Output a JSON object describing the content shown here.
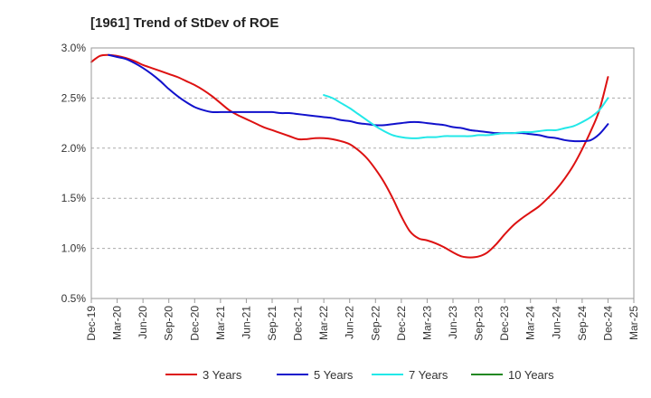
{
  "chart_data": {
    "type": "line",
    "title": "[1961]  Trend of StDev of ROE",
    "xlabel": "",
    "ylabel": "",
    "x_tick_labels": [
      "Dec-19",
      "Mar-20",
      "Jun-20",
      "Sep-20",
      "Dec-20",
      "Mar-21",
      "Jun-21",
      "Sep-21",
      "Dec-21",
      "Mar-22",
      "Jun-22",
      "Sep-22",
      "Dec-22",
      "Mar-23",
      "Jun-23",
      "Sep-23",
      "Dec-23",
      "Mar-24",
      "Jun-24",
      "Sep-24",
      "Dec-24",
      "Mar-25"
    ],
    "y_tick_labels": [
      "0.5%",
      "1.0%",
      "1.5%",
      "2.0%",
      "2.5%",
      "3.0%"
    ],
    "ylim": [
      0.5,
      3.0
    ],
    "y_unit": "%",
    "grid": "horizontal dashed",
    "legend_position": "bottom",
    "series": [
      {
        "name": "3 Years",
        "color": "#dd1111",
        "points": [
          [
            "Dec-19",
            2.86
          ],
          [
            "Jan-20",
            2.92
          ],
          [
            "Feb-20",
            2.93
          ],
          [
            "Mar-20",
            2.92
          ],
          [
            "Apr-20",
            2.9
          ],
          [
            "May-20",
            2.87
          ],
          [
            "Jun-20",
            2.83
          ],
          [
            "Jul-20",
            2.8
          ],
          [
            "Aug-20",
            2.77
          ],
          [
            "Sep-20",
            2.74
          ],
          [
            "Oct-20",
            2.71
          ],
          [
            "Nov-20",
            2.67
          ],
          [
            "Dec-20",
            2.63
          ],
          [
            "Jan-21",
            2.58
          ],
          [
            "Feb-21",
            2.52
          ],
          [
            "Mar-21",
            2.45
          ],
          [
            "Apr-21",
            2.38
          ],
          [
            "May-21",
            2.33
          ],
          [
            "Jun-21",
            2.29
          ],
          [
            "Jul-21",
            2.25
          ],
          [
            "Aug-21",
            2.21
          ],
          [
            "Sep-21",
            2.18
          ],
          [
            "Oct-21",
            2.15
          ],
          [
            "Nov-21",
            2.12
          ],
          [
            "Dec-21",
            2.09
          ],
          [
            "Jan-22",
            2.09
          ],
          [
            "Feb-22",
            2.1
          ],
          [
            "Mar-22",
            2.1
          ],
          [
            "Apr-22",
            2.09
          ],
          [
            "May-22",
            2.07
          ],
          [
            "Jun-22",
            2.04
          ],
          [
            "Jul-22",
            1.98
          ],
          [
            "Aug-22",
            1.9
          ],
          [
            "Sep-22",
            1.79
          ],
          [
            "Oct-22",
            1.66
          ],
          [
            "Nov-22",
            1.5
          ],
          [
            "Dec-22",
            1.32
          ],
          [
            "Jan-23",
            1.17
          ],
          [
            "Feb-23",
            1.1
          ],
          [
            "Mar-23",
            1.08
          ],
          [
            "Apr-23",
            1.05
          ],
          [
            "May-23",
            1.01
          ],
          [
            "Jun-23",
            0.96
          ],
          [
            "Jul-23",
            0.92
          ],
          [
            "Aug-23",
            0.91
          ],
          [
            "Sep-23",
            0.92
          ],
          [
            "Oct-23",
            0.96
          ],
          [
            "Nov-23",
            1.04
          ],
          [
            "Dec-23",
            1.14
          ],
          [
            "Jan-24",
            1.23
          ],
          [
            "Feb-24",
            1.3
          ],
          [
            "Mar-24",
            1.36
          ],
          [
            "Apr-24",
            1.42
          ],
          [
            "May-24",
            1.5
          ],
          [
            "Jun-24",
            1.59
          ],
          [
            "Jul-24",
            1.7
          ],
          [
            "Aug-24",
            1.83
          ],
          [
            "Sep-24",
            1.99
          ],
          [
            "Oct-24",
            2.17
          ],
          [
            "Nov-24",
            2.38
          ],
          [
            "Dec-24",
            2.71
          ]
        ]
      },
      {
        "name": "5 Years",
        "color": "#1111cc",
        "points": [
          [
            "Feb-20",
            2.93
          ],
          [
            "Mar-20",
            2.91
          ],
          [
            "Apr-20",
            2.89
          ],
          [
            "May-20",
            2.85
          ],
          [
            "Jun-20",
            2.8
          ],
          [
            "Jul-20",
            2.74
          ],
          [
            "Aug-20",
            2.67
          ],
          [
            "Sep-20",
            2.59
          ],
          [
            "Oct-20",
            2.52
          ],
          [
            "Nov-20",
            2.46
          ],
          [
            "Dec-20",
            2.41
          ],
          [
            "Jan-21",
            2.38
          ],
          [
            "Feb-21",
            2.36
          ],
          [
            "Mar-21",
            2.36
          ],
          [
            "Apr-21",
            2.36
          ],
          [
            "May-21",
            2.36
          ],
          [
            "Jun-21",
            2.36
          ],
          [
            "Jul-21",
            2.36
          ],
          [
            "Aug-21",
            2.36
          ],
          [
            "Sep-21",
            2.36
          ],
          [
            "Oct-21",
            2.35
          ],
          [
            "Nov-21",
            2.35
          ],
          [
            "Dec-21",
            2.34
          ],
          [
            "Jan-22",
            2.33
          ],
          [
            "Feb-22",
            2.32
          ],
          [
            "Mar-22",
            2.31
          ],
          [
            "Apr-22",
            2.3
          ],
          [
            "May-22",
            2.28
          ],
          [
            "Jun-22",
            2.27
          ],
          [
            "Jul-22",
            2.25
          ],
          [
            "Aug-22",
            2.24
          ],
          [
            "Sep-22",
            2.23
          ],
          [
            "Oct-22",
            2.23
          ],
          [
            "Nov-22",
            2.24
          ],
          [
            "Dec-22",
            2.25
          ],
          [
            "Jan-23",
            2.26
          ],
          [
            "Feb-23",
            2.26
          ],
          [
            "Mar-23",
            2.25
          ],
          [
            "Apr-23",
            2.24
          ],
          [
            "May-23",
            2.23
          ],
          [
            "Jun-23",
            2.21
          ],
          [
            "Jul-23",
            2.2
          ],
          [
            "Aug-23",
            2.18
          ],
          [
            "Sep-23",
            2.17
          ],
          [
            "Oct-23",
            2.16
          ],
          [
            "Nov-23",
            2.15
          ],
          [
            "Dec-23",
            2.15
          ],
          [
            "Jan-24",
            2.15
          ],
          [
            "Feb-24",
            2.15
          ],
          [
            "Mar-24",
            2.14
          ],
          [
            "Apr-24",
            2.13
          ],
          [
            "May-24",
            2.11
          ],
          [
            "Jun-24",
            2.1
          ],
          [
            "Jul-24",
            2.08
          ],
          [
            "Aug-24",
            2.07
          ],
          [
            "Sep-24",
            2.07
          ],
          [
            "Oct-24",
            2.08
          ],
          [
            "Nov-24",
            2.14
          ],
          [
            "Dec-24",
            2.24
          ]
        ]
      },
      {
        "name": "7 Years",
        "color": "#22e8e8",
        "points": [
          [
            "Mar-22",
            2.53
          ],
          [
            "Apr-22",
            2.5
          ],
          [
            "May-22",
            2.45
          ],
          [
            "Jun-22",
            2.4
          ],
          [
            "Jul-22",
            2.34
          ],
          [
            "Aug-22",
            2.28
          ],
          [
            "Sep-22",
            2.22
          ],
          [
            "Oct-22",
            2.17
          ],
          [
            "Nov-22",
            2.13
          ],
          [
            "Dec-22",
            2.11
          ],
          [
            "Jan-23",
            2.1
          ],
          [
            "Feb-23",
            2.1
          ],
          [
            "Mar-23",
            2.11
          ],
          [
            "Apr-23",
            2.11
          ],
          [
            "May-23",
            2.12
          ],
          [
            "Jun-23",
            2.12
          ],
          [
            "Jul-23",
            2.12
          ],
          [
            "Aug-23",
            2.12
          ],
          [
            "Sep-23",
            2.13
          ],
          [
            "Oct-23",
            2.13
          ],
          [
            "Nov-23",
            2.14
          ],
          [
            "Dec-23",
            2.15
          ],
          [
            "Jan-24",
            2.15
          ],
          [
            "Feb-24",
            2.16
          ],
          [
            "Mar-24",
            2.16
          ],
          [
            "Apr-24",
            2.17
          ],
          [
            "May-24",
            2.18
          ],
          [
            "Jun-24",
            2.18
          ],
          [
            "Jul-24",
            2.2
          ],
          [
            "Aug-24",
            2.22
          ],
          [
            "Sep-24",
            2.26
          ],
          [
            "Oct-24",
            2.31
          ],
          [
            "Nov-24",
            2.38
          ],
          [
            "Dec-24",
            2.5
          ]
        ]
      },
      {
        "name": "10 Years",
        "color": "#228822",
        "points": []
      }
    ]
  }
}
